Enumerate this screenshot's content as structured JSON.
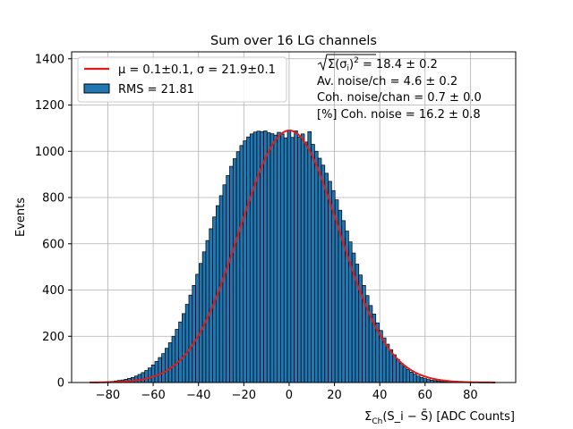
{
  "chart_data": {
    "type": "bar",
    "title": "Sum over 16 LG channels",
    "xlabel": "Σ_Ch(S_i − S̄) [ADC Counts]",
    "ylabel": "Events",
    "xlim": [
      -96,
      100
    ],
    "ylim": [
      0,
      1430
    ],
    "xticks": [
      -80,
      -60,
      -40,
      -20,
      0,
      20,
      40,
      60,
      80
    ],
    "yticks": [
      0,
      200,
      400,
      600,
      800,
      1000,
      1200,
      1400
    ],
    "grid": true,
    "legend_position": "top-left",
    "fit_label": "μ = 0.1±0.1, σ = 21.9±0.1",
    "hist_label": "RMS = 21.81",
    "colors": {
      "hist": "#1f77b4",
      "fit": "#e01b1b",
      "edge": "#000000"
    },
    "histogram": {
      "bin_width": 1.5,
      "centers": [
        -82.5,
        -81,
        -79.5,
        -78,
        -76.5,
        -75,
        -73.5,
        -72,
        -70.5,
        -69,
        -67.5,
        -66,
        -64.5,
        -63,
        -61.5,
        -60,
        -58.5,
        -57,
        -55.5,
        -54,
        -52.5,
        -51,
        -49.5,
        -48,
        -46.5,
        -45,
        -43.5,
        -42,
        -40.5,
        -39,
        -37.5,
        -36,
        -34.5,
        -33,
        -31.5,
        -30,
        -28.5,
        -27,
        -25.5,
        -24,
        -22.5,
        -21,
        -19.5,
        -18,
        -16.5,
        -15,
        -13.5,
        -12,
        -10.5,
        -9,
        -7.5,
        -6,
        -4.5,
        -3,
        -1.5,
        0,
        1.5,
        3,
        4.5,
        6,
        7.5,
        9,
        10.5,
        12,
        13.5,
        15,
        16.5,
        18,
        19.5,
        21,
        22.5,
        24,
        25.5,
        27,
        28.5,
        30,
        31.5,
        33,
        34.5,
        36,
        37.5,
        39,
        40.5,
        42,
        43.5,
        45,
        46.5,
        48,
        49.5,
        51,
        52.5,
        54,
        55.5,
        57,
        58.5,
        60,
        61.5,
        63,
        64.5,
        66,
        67.5,
        69,
        70.5,
        72,
        73.5,
        75,
        76.5,
        78,
        79.5,
        81,
        82.5,
        84
      ],
      "values": [
        2,
        3,
        4,
        5,
        7,
        9,
        11,
        14,
        18,
        22,
        28,
        35,
        43,
        52,
        63,
        76,
        91,
        108,
        125,
        148,
        172,
        200,
        230,
        262,
        298,
        338,
        378,
        420,
        468,
        515,
        565,
        614,
        665,
        716,
        765,
        808,
        855,
        895,
        935,
        968,
        998,
        1025,
        1045,
        1062,
        1075,
        1083,
        1087,
        1085,
        1088,
        1080,
        1076,
        1070,
        1082,
        1075,
        1058,
        1090,
        1060,
        1088,
        1062,
        1075,
        1040,
        1085,
        1030,
        1000,
        970,
        940,
        905,
        870,
        830,
        790,
        745,
        700,
        655,
        608,
        560,
        512,
        465,
        420,
        376,
        333,
        296,
        258,
        225,
        193,
        166,
        142,
        120,
        100,
        83,
        69,
        56,
        45,
        36,
        28,
        22,
        17,
        13,
        10,
        8,
        6,
        4,
        3,
        2,
        2,
        1,
        1,
        1,
        1,
        0,
        0,
        0,
        0
      ]
    },
    "fit": {
      "mu": 0.1,
      "sigma": 21.9,
      "amplitude": 1090,
      "x_range": [
        -88,
        91
      ]
    },
    "annotations": [
      {
        "math": "sqrt",
        "radicand": "Σ(σ",
        "sub": "i",
        "tail": ")",
        "sup": "2",
        "value": " = 18.4 ± 0.2"
      },
      {
        "label": "Av. noise/ch ",
        "value": " = 4.6 ± 0.2"
      },
      {
        "label": "Coh. noise/chan ",
        "value": " = 0.7 ± 0.0"
      },
      {
        "label": "[%] Coh. noise ",
        "value": " = 16.2 ± 0.8"
      }
    ]
  }
}
